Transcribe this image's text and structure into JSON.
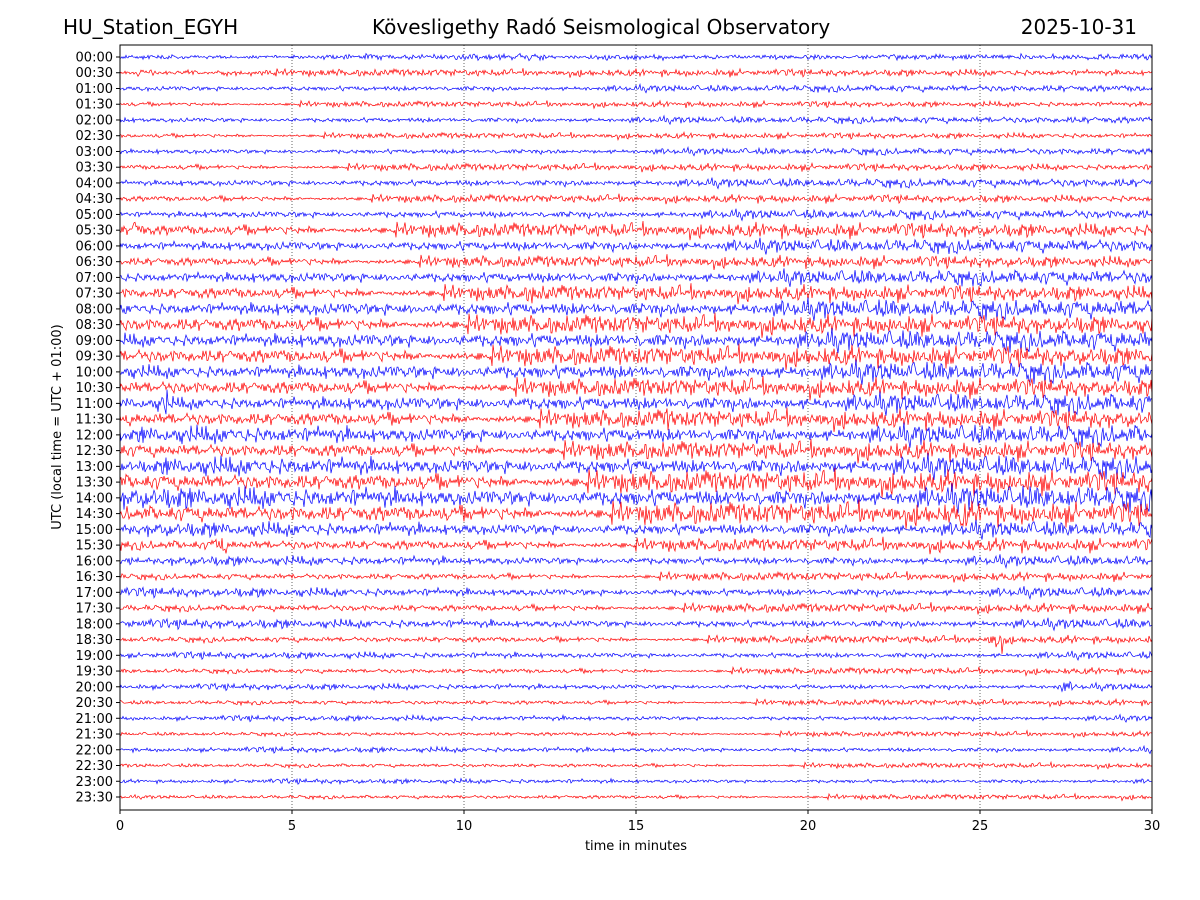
{
  "header": {
    "station": "HU_Station_EGYH",
    "title": "Kövesligethy Radó Seismological Observatory",
    "date": "2025-10-31"
  },
  "chart_data": {
    "type": "line",
    "title": "Kövesligethy Radó Seismological Observatory",
    "xlabel": "time in minutes",
    "ylabel": "UTC (local time = UTC + 01:00)",
    "xlim": [
      0,
      30
    ],
    "xticks": [
      "0",
      "5",
      "10",
      "15",
      "20",
      "25",
      "30"
    ],
    "grid": "vertical dotted at 5-minute intervals",
    "colors": [
      "#0000ff",
      "#ff0000"
    ],
    "rows": [
      "00:00",
      "00:30",
      "01:00",
      "01:30",
      "02:00",
      "02:30",
      "03:00",
      "03:30",
      "04:00",
      "04:30",
      "05:00",
      "05:30",
      "06:00",
      "06:30",
      "07:00",
      "07:30",
      "08:00",
      "08:30",
      "09:00",
      "09:30",
      "10:00",
      "10:30",
      "11:00",
      "11:30",
      "12:00",
      "12:30",
      "13:00",
      "13:30",
      "14:00",
      "14:30",
      "15:00",
      "15:30",
      "16:00",
      "16:30",
      "17:00",
      "17:30",
      "18:00",
      "18:30",
      "19:00",
      "19:30",
      "20:00",
      "20:30",
      "21:00",
      "21:30",
      "22:00",
      "22:30",
      "23:00",
      "23:30"
    ],
    "relative_amplitude": [
      1.0,
      1.1,
      1.0,
      0.9,
      1.0,
      0.9,
      1.0,
      1.1,
      1.3,
      1.2,
      1.4,
      2.2,
      2.0,
      1.8,
      2.2,
      2.4,
      2.8,
      2.9,
      3.0,
      3.0,
      3.0,
      2.8,
      2.9,
      2.8,
      3.0,
      2.8,
      3.2,
      3.4,
      3.6,
      3.4,
      2.4,
      2.0,
      1.6,
      1.3,
      1.5,
      1.4,
      1.5,
      1.2,
      1.1,
      1.0,
      1.0,
      0.9,
      0.9,
      0.8,
      0.9,
      0.8,
      0.8,
      0.8
    ],
    "events": [
      {
        "row": "05:30",
        "minute": 0.5,
        "relative_amplitude": 5
      },
      {
        "row": "07:30",
        "minute": 12.0,
        "relative_amplitude": 5
      },
      {
        "row": "11:00",
        "minute": 1.3,
        "relative_amplitude": 6
      },
      {
        "row": "11:30",
        "minute": 15.9,
        "relative_amplitude": 5
      },
      {
        "row": "14:30",
        "minute": 24.5,
        "relative_amplitude": 7
      },
      {
        "row": "15:30",
        "minute": 2.9,
        "relative_amplitude": 5
      },
      {
        "row": "18:30",
        "minute": 25.5,
        "relative_amplitude": 6
      },
      {
        "row": "20:00",
        "minute": 27.5,
        "relative_amplitude": 3
      }
    ]
  }
}
